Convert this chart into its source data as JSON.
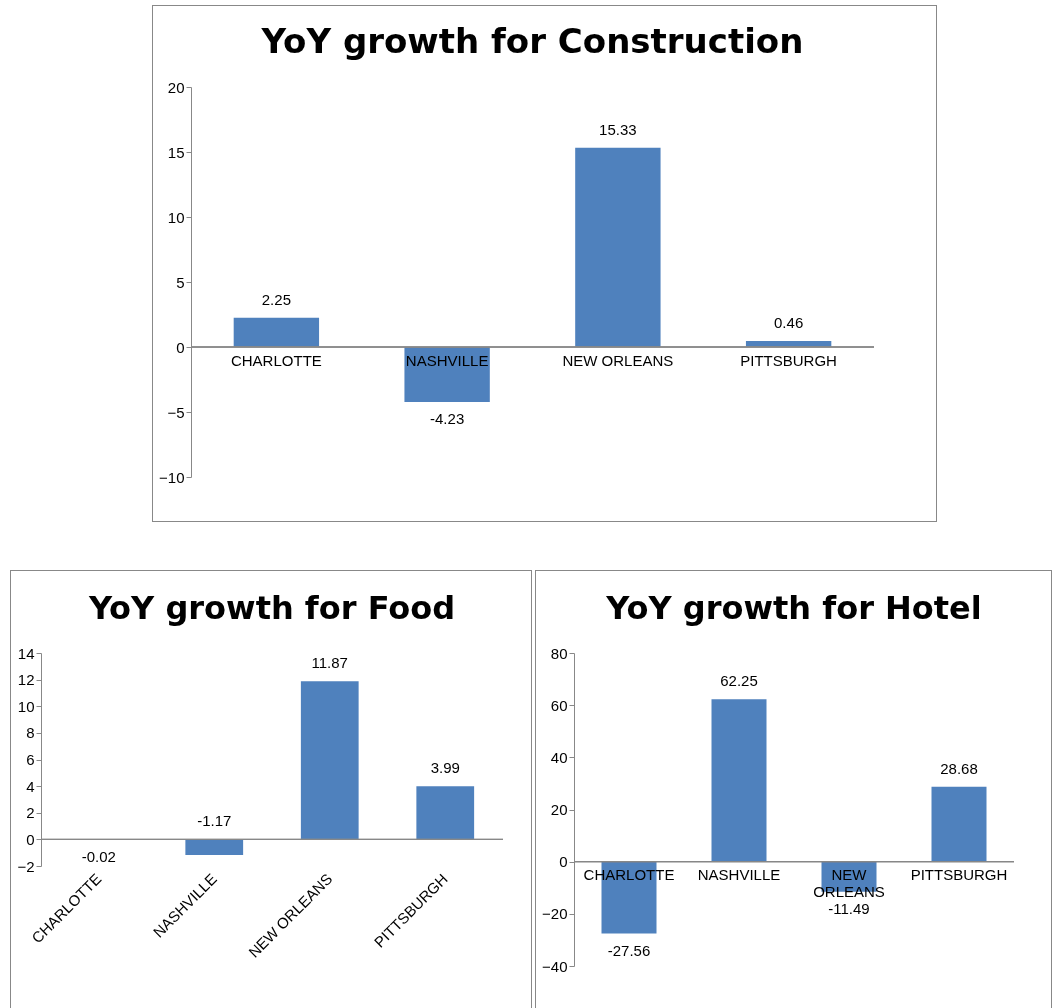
{
  "chart_data": [
    {
      "type": "bar",
      "title": "YoY growth for Construction",
      "categories": [
        "CHARLOTTE",
        "NASHVILLE",
        "NEW ORLEANS",
        "PITTSBURGH"
      ],
      "values": [
        2.25,
        -4.23,
        15.33,
        0.46
      ],
      "color": "#4f81bd",
      "ylim": [
        -10,
        20
      ],
      "yticks": [
        -10,
        -5,
        0,
        5,
        10,
        15,
        20
      ],
      "data_labels": true,
      "grid": false
    },
    {
      "type": "bar",
      "title": "YoY growth for Food",
      "categories": [
        "CHARLOTTE",
        "NASHVILLE",
        "NEW ORLEANS",
        "PITTSBURGH"
      ],
      "values": [
        -0.02,
        -1.17,
        11.87,
        3.99
      ],
      "color": "#4f81bd",
      "ylim": [
        -2,
        14
      ],
      "yticks": [
        -2,
        0,
        2,
        4,
        6,
        8,
        10,
        12,
        14
      ],
      "data_labels": true,
      "grid": false
    },
    {
      "type": "bar",
      "title": "YoY growth for Hotel",
      "categories": [
        "CHARLOTTE",
        "NASHVILLE",
        "NEW ORLEANS",
        "PITTSBURGH"
      ],
      "values": [
        -27.56,
        62.25,
        -11.49,
        28.68
      ],
      "color": "#4f81bd",
      "ylim": [
        -40,
        80
      ],
      "yticks": [
        -40,
        -20,
        0,
        20,
        40,
        60,
        80
      ],
      "data_labels": true,
      "grid": false
    }
  ]
}
